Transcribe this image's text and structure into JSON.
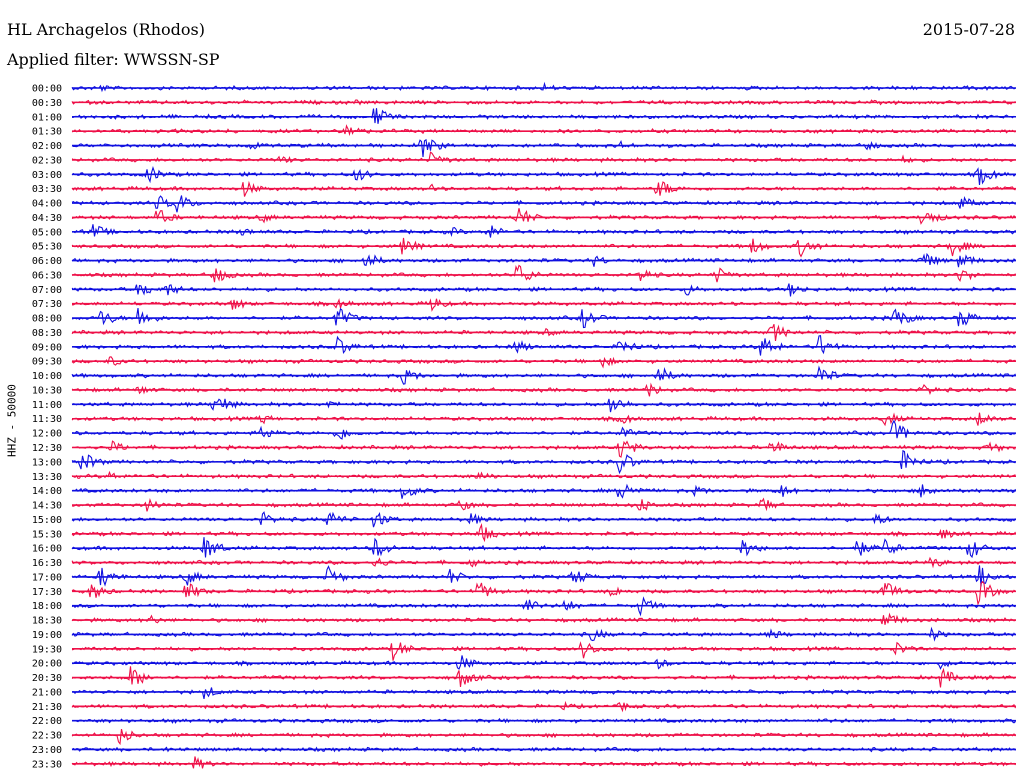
{
  "header": {
    "station": "HL Archagelos (Rhodos)",
    "date": "2015-07-28",
    "filter": "Applied filter: WWSSN-SP",
    "axis_label": "HHZ - 50000"
  },
  "chart_data": {
    "type": "line",
    "title": "HL Archagelos (Rhodos)",
    "ylabel": "HHZ - 50000",
    "grid": false,
    "colors": {
      "even": "#1010e0",
      "odd": "#ee1048"
    },
    "row_labels": [
      "00:00",
      "00:30",
      "01:00",
      "01:30",
      "02:00",
      "02:30",
      "03:00",
      "03:30",
      "04:00",
      "04:30",
      "05:00",
      "05:30",
      "06:00",
      "06:30",
      "07:00",
      "07:30",
      "08:00",
      "08:30",
      "09:00",
      "09:30",
      "10:00",
      "10:30",
      "11:00",
      "11:30",
      "12:00",
      "12:30",
      "13:00",
      "13:30",
      "14:00",
      "14:30",
      "15:00",
      "15:30",
      "16:00",
      "16:30",
      "17:00",
      "17:30",
      "18:00",
      "18:30",
      "19:00",
      "19:30",
      "20:00",
      "20:30",
      "21:00",
      "21:30",
      "22:00",
      "22:30",
      "23:00",
      "23:30"
    ],
    "traces": [
      {
        "time": "00:00",
        "events": [
          [
            0.03,
            4
          ],
          [
            0.5,
            5
          ]
        ]
      },
      {
        "time": "00:30",
        "events": [
          [
            0.3,
            3
          ]
        ]
      },
      {
        "time": "01:00",
        "events": [
          [
            0.32,
            12
          ]
        ]
      },
      {
        "time": "01:30",
        "events": [
          [
            0.29,
            9
          ]
        ]
      },
      {
        "time": "02:00",
        "events": [
          [
            0.37,
            14
          ],
          [
            0.19,
            5
          ],
          [
            0.58,
            5
          ],
          [
            0.84,
            6
          ]
        ]
      },
      {
        "time": "02:30",
        "events": [
          [
            0.38,
            9
          ],
          [
            0.22,
            5
          ],
          [
            0.88,
            4
          ]
        ]
      },
      {
        "time": "03:00",
        "events": [
          [
            0.08,
            10
          ],
          [
            0.3,
            8
          ],
          [
            0.96,
            12
          ]
        ]
      },
      {
        "time": "03:30",
        "events": [
          [
            0.18,
            10
          ],
          [
            0.62,
            12
          ],
          [
            0.38,
            5
          ]
        ]
      },
      {
        "time": "04:00",
        "events": [
          [
            0.11,
            12
          ],
          [
            0.09,
            9
          ],
          [
            0.94,
            8
          ]
        ]
      },
      {
        "time": "04:30",
        "events": [
          [
            0.09,
            10
          ],
          [
            0.47,
            14
          ],
          [
            0.9,
            12
          ],
          [
            0.2,
            6
          ]
        ]
      },
      {
        "time": "05:00",
        "events": [
          [
            0.02,
            10
          ],
          [
            0.44,
            9
          ],
          [
            0.18,
            5
          ],
          [
            0.4,
            6
          ]
        ]
      },
      {
        "time": "05:30",
        "events": [
          [
            0.35,
            10
          ],
          [
            0.72,
            9
          ],
          [
            0.77,
            12
          ],
          [
            0.93,
            12
          ]
        ]
      },
      {
        "time": "06:00",
        "events": [
          [
            0.31,
            10
          ],
          [
            0.55,
            8
          ],
          [
            0.9,
            11
          ],
          [
            0.94,
            10
          ]
        ]
      },
      {
        "time": "06:30",
        "events": [
          [
            0.15,
            10
          ],
          [
            0.47,
            14
          ],
          [
            0.6,
            9
          ],
          [
            0.68,
            11
          ],
          [
            0.94,
            9
          ]
        ]
      },
      {
        "time": "07:00",
        "events": [
          [
            0.07,
            10
          ],
          [
            0.1,
            8
          ],
          [
            0.65,
            7
          ],
          [
            0.76,
            8
          ]
        ]
      },
      {
        "time": "07:30",
        "events": [
          [
            0.17,
            8
          ],
          [
            0.38,
            9
          ],
          [
            0.28,
            6
          ]
        ]
      },
      {
        "time": "08:00",
        "events": [
          [
            0.03,
            10
          ],
          [
            0.07,
            12
          ],
          [
            0.28,
            13
          ],
          [
            0.54,
            12
          ],
          [
            0.87,
            13
          ],
          [
            0.94,
            12
          ]
        ]
      },
      {
        "time": "08:30",
        "events": [
          [
            0.5,
            5
          ],
          [
            0.74,
            12
          ]
        ]
      },
      {
        "time": "09:00",
        "events": [
          [
            0.28,
            12
          ],
          [
            0.47,
            8
          ],
          [
            0.58,
            10
          ],
          [
            0.73,
            13
          ],
          [
            0.79,
            14
          ]
        ]
      },
      {
        "time": "09:30",
        "events": [
          [
            0.04,
            6
          ],
          [
            0.56,
            7
          ]
        ]
      },
      {
        "time": "10:00",
        "events": [
          [
            0.35,
            10
          ],
          [
            0.62,
            11
          ],
          [
            0.79,
            13
          ]
        ]
      },
      {
        "time": "10:30",
        "events": [
          [
            0.07,
            6
          ],
          [
            0.61,
            8
          ],
          [
            0.9,
            8
          ]
        ]
      },
      {
        "time": "11:00",
        "events": [
          [
            0.15,
            14
          ],
          [
            0.27,
            5
          ],
          [
            0.57,
            12
          ]
        ]
      },
      {
        "time": "11:30",
        "events": [
          [
            0.2,
            6
          ],
          [
            0.58,
            7
          ],
          [
            0.86,
            9
          ],
          [
            0.96,
            9
          ]
        ]
      },
      {
        "time": "12:00",
        "events": [
          [
            0.2,
            8
          ],
          [
            0.28,
            10
          ],
          [
            0.58,
            8
          ],
          [
            0.87,
            13
          ]
        ]
      },
      {
        "time": "12:30",
        "events": [
          [
            0.04,
            8
          ],
          [
            0.58,
            13
          ],
          [
            0.74,
            9
          ],
          [
            0.97,
            8
          ]
        ]
      },
      {
        "time": "13:00",
        "events": [
          [
            0.01,
            12
          ],
          [
            0.58,
            13
          ],
          [
            0.88,
            12
          ]
        ]
      },
      {
        "time": "13:30",
        "events": [
          [
            0.04,
            5
          ],
          [
            0.43,
            6
          ]
        ]
      },
      {
        "time": "14:00",
        "events": [
          [
            0.35,
            10
          ],
          [
            0.58,
            13
          ],
          [
            0.66,
            6
          ],
          [
            0.75,
            8
          ],
          [
            0.9,
            9
          ]
        ]
      },
      {
        "time": "14:30",
        "events": [
          [
            0.08,
            8
          ],
          [
            0.41,
            7
          ],
          [
            0.6,
            9
          ],
          [
            0.73,
            8
          ]
        ]
      },
      {
        "time": "15:00",
        "events": [
          [
            0.2,
            9
          ],
          [
            0.27,
            11
          ],
          [
            0.32,
            10
          ],
          [
            0.42,
            8
          ],
          [
            0.85,
            7
          ]
        ]
      },
      {
        "time": "15:30",
        "events": [
          [
            0.43,
            12
          ],
          [
            0.92,
            7
          ]
        ]
      },
      {
        "time": "16:00",
        "events": [
          [
            0.14,
            14
          ],
          [
            0.32,
            12
          ],
          [
            0.71,
            11
          ],
          [
            0.83,
            11
          ],
          [
            0.86,
            11
          ],
          [
            0.95,
            12
          ]
        ]
      },
      {
        "time": "16:30",
        "events": [
          [
            0.32,
            7
          ],
          [
            0.42,
            6
          ],
          [
            0.91,
            7
          ]
        ]
      },
      {
        "time": "17:00",
        "events": [
          [
            0.03,
            12
          ],
          [
            0.12,
            10
          ],
          [
            0.27,
            12
          ],
          [
            0.4,
            9
          ],
          [
            0.53,
            10
          ],
          [
            0.96,
            13
          ]
        ]
      },
      {
        "time": "17:30",
        "events": [
          [
            0.02,
            10
          ],
          [
            0.12,
            11
          ],
          [
            0.43,
            11
          ],
          [
            0.57,
            7
          ],
          [
            0.86,
            12
          ],
          [
            0.96,
            14
          ]
        ]
      },
      {
        "time": "18:00",
        "events": [
          [
            0.48,
            9
          ],
          [
            0.52,
            8
          ],
          [
            0.6,
            12
          ]
        ]
      },
      {
        "time": "18:30",
        "events": [
          [
            0.08,
            6
          ],
          [
            0.86,
            11
          ]
        ]
      },
      {
        "time": "19:00",
        "events": [
          [
            0.55,
            8
          ],
          [
            0.74,
            6
          ],
          [
            0.91,
            7
          ]
        ]
      },
      {
        "time": "19:30",
        "events": [
          [
            0.34,
            12
          ],
          [
            0.54,
            11
          ],
          [
            0.87,
            9
          ]
        ]
      },
      {
        "time": "20:00",
        "events": [
          [
            0.41,
            10
          ],
          [
            0.62,
            6
          ],
          [
            0.92,
            6
          ]
        ]
      },
      {
        "time": "20:30",
        "events": [
          [
            0.06,
            14
          ],
          [
            0.41,
            12
          ],
          [
            0.92,
            11
          ]
        ]
      },
      {
        "time": "21:00",
        "events": [
          [
            0.14,
            8
          ]
        ]
      },
      {
        "time": "21:30",
        "events": [
          [
            0.52,
            5
          ],
          [
            0.58,
            6
          ]
        ]
      },
      {
        "time": "22:00",
        "events": [
          [
            0.8,
            3
          ]
        ]
      },
      {
        "time": "22:30",
        "events": [
          [
            0.05,
            10
          ]
        ]
      },
      {
        "time": "23:00",
        "events": [
          [
            0.1,
            3
          ]
        ]
      },
      {
        "time": "23:30",
        "events": [
          [
            0.13,
            8
          ]
        ]
      }
    ]
  }
}
